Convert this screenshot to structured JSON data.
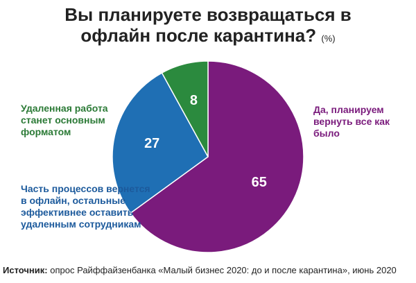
{
  "chart_data": {
    "type": "pie",
    "title": "Вы планируете возвращаться в офлайн после карантина?",
    "unit": "(%)",
    "categories": [
      "Да, планируем вернуть все как было",
      "Часть процессов вернется в офлайн, остальные эффективнее оставить удаленным сотрудникам",
      "Удаленная работа станет основным форматом"
    ],
    "values": [
      65,
      27,
      8
    ],
    "colors": [
      "#7a1b7c",
      "#1f6fb4",
      "#2b8a3e"
    ],
    "label_colors": [
      "#7a1b7c",
      "#1c5a9c",
      "#2b7a36"
    ],
    "source_label": "Источник:",
    "source": "опрос Райффайзенбанка «Малый бизнес 2020: до и после карантина», июнь 2020"
  }
}
